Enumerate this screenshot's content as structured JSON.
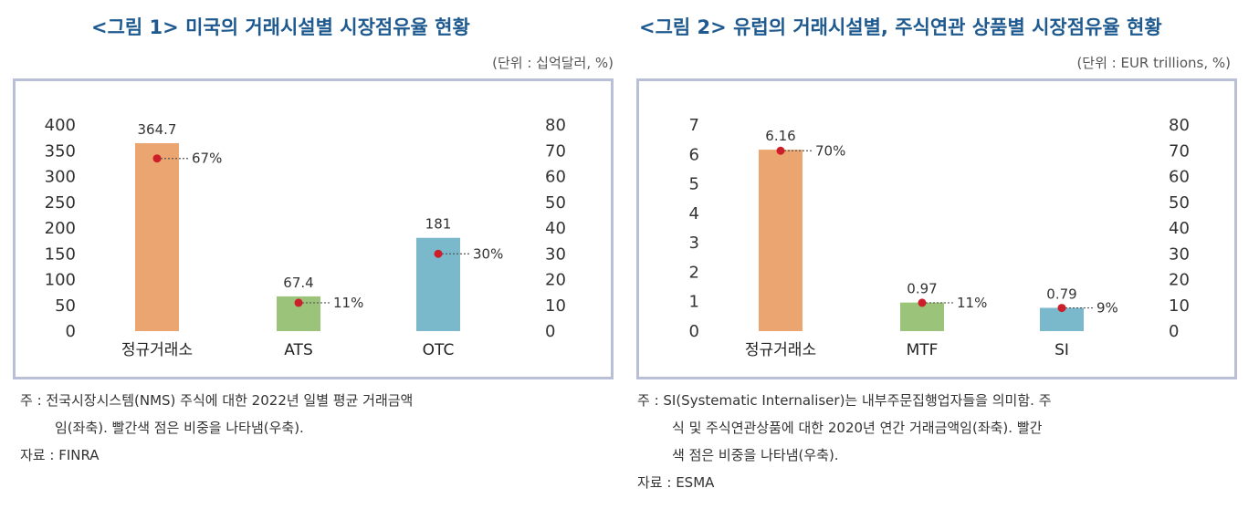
{
  "charts": [
    {
      "title": "<그림 1> 미국의 거래시설별 시장점유율 현황",
      "unit": "(단위 : 십억달러, %)",
      "note_line1": "주 : 전국시장시스템(NMS) 주식에 대한 2022년 일별 평균 거래금액",
      "note_line2": "임(좌축). 빨간색 점은 비중을 나타냄(우축).",
      "note_line3": "",
      "source": "자료 : FINRA"
    },
    {
      "title": "<그림 2> 유럽의 거래시설별, 주식연관 상품별 시장점유율 현황",
      "unit": "(단위 : EUR trillions, %)",
      "note_line1": "주 : SI(Systematic Internaliser)는 내부주문집행업자들을 의미함. 주",
      "note_line2": "식 및 주식연관상품에 대한 2020년 연간 거래금액임(좌축). 빨간",
      "note_line3": "색 점은 비중을 나타냄(우축).",
      "source": "자료 : ESMA"
    }
  ],
  "chart_data": [
    {
      "type": "bar",
      "categories": [
        "정규거래소",
        "ATS",
        "OTC"
      ],
      "values": [
        364.7,
        67.4,
        181
      ],
      "value_labels": [
        "364.7",
        "67.4",
        "181"
      ],
      "share": [
        67,
        11,
        30
      ],
      "share_labels": [
        "67%",
        "11%",
        "30%"
      ],
      "ylim": [
        0,
        400
      ],
      "yticks": [
        "400",
        "350",
        "300",
        "250",
        "200",
        "150",
        "100",
        "50",
        "0"
      ],
      "y2lim": [
        0,
        80
      ],
      "y2ticks": [
        "80",
        "70",
        "60",
        "50",
        "40",
        "30",
        "20",
        "10",
        "0"
      ],
      "bar_colors": [
        "#eba570",
        "#9bc47a",
        "#7ab8cc"
      ],
      "dot_color": "#cc1f2a"
    },
    {
      "type": "bar",
      "categories": [
        "정규거래소",
        "MTF",
        "SI"
      ],
      "values": [
        6.16,
        0.97,
        0.79
      ],
      "value_labels": [
        "6.16",
        "0.97",
        "0.79"
      ],
      "share": [
        70,
        11,
        9
      ],
      "share_labels": [
        "70%",
        "11%",
        "9%"
      ],
      "ylim": [
        0,
        7
      ],
      "yticks": [
        "7",
        "6",
        "5",
        "4",
        "3",
        "2",
        "1",
        "0"
      ],
      "y2lim": [
        0,
        80
      ],
      "y2ticks": [
        "80",
        "70",
        "60",
        "50",
        "40",
        "30",
        "20",
        "10",
        "0"
      ],
      "bar_colors": [
        "#eba570",
        "#9bc47a",
        "#7ab8cc"
      ],
      "dot_color": "#cc1f2a"
    }
  ]
}
